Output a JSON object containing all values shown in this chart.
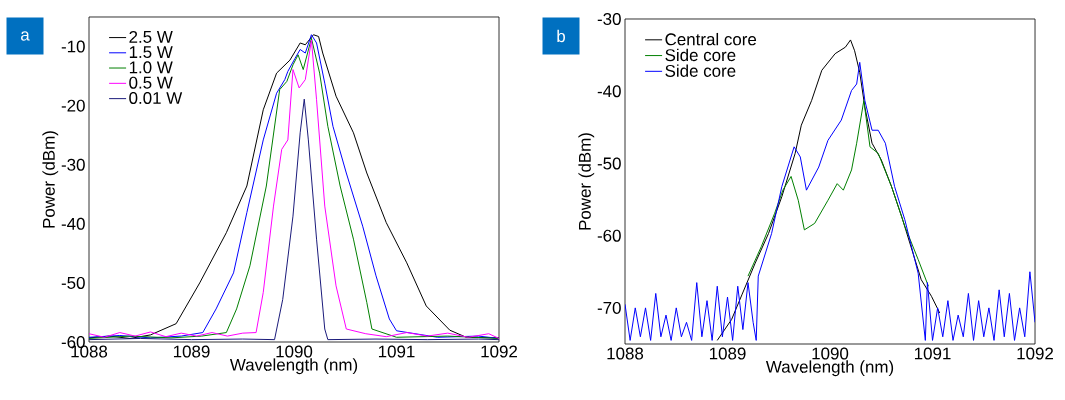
{
  "chart_data": [
    {
      "type": "line",
      "annotations": [
        "a"
      ],
      "xlabel": "Wavelength (nm)",
      "ylabel": "Power (dBm)",
      "xlim": [
        1088,
        1092
      ],
      "ylim": [
        -60,
        -5
      ],
      "xticks": [
        1088,
        1089,
        1090,
        1091,
        1092
      ],
      "yticks": [
        -60,
        -50,
        -40,
        -30,
        -20,
        -10
      ],
      "legend": "top left",
      "grid": false,
      "series": [
        {
          "name": "2.5 W",
          "color": "#000000",
          "x": [
            1088.0,
            1088.2,
            1088.4,
            1088.6,
            1088.85,
            1089.08,
            1089.34,
            1089.54,
            1089.7,
            1089.83,
            1089.96,
            1090.06,
            1090.11,
            1090.19,
            1090.24,
            1090.28,
            1090.41,
            1090.58,
            1090.71,
            1090.9,
            1091.1,
            1091.29,
            1091.52,
            1091.68,
            1091.8,
            1092.0
          ],
          "values": [
            -59.3,
            -59.0,
            -59.4,
            -58.8,
            -56.9,
            -50,
            -41.5,
            -33.6,
            -20.7,
            -14.5,
            -12.3,
            -9.4,
            -9.7,
            -8,
            -8.3,
            -11.1,
            -18.4,
            -24.6,
            -31.4,
            -39.8,
            -46.6,
            -53.9,
            -58,
            -59.2,
            null,
            -59.3
          ]
        },
        {
          "name": "1.5 W",
          "color": "#0000ff",
          "x": [
            1088.0,
            1088.3,
            1088.6,
            1088.9,
            1089.11,
            1089.24,
            1089.41,
            1089.54,
            1089.7,
            1089.83,
            1089.91,
            1089.94,
            1090.01,
            1090.06,
            1090.11,
            1090.17,
            1090.22,
            1090.3,
            1090.38,
            1090.51,
            1090.67,
            1090.8,
            1090.93,
            1091.0,
            1091.4,
            1091.8,
            1092.0
          ],
          "values": [
            -59.2,
            -58.9,
            -59.3,
            -59.0,
            -58.4,
            -54.4,
            -48.3,
            -38.1,
            -25.8,
            -17.9,
            -15.6,
            -14.2,
            -12,
            -10.5,
            -11.1,
            -8,
            -9.4,
            -16.2,
            -23.5,
            -31.4,
            -40.4,
            -48.8,
            -56.1,
            -58.1,
            -59.2,
            -59.0,
            -59.4
          ]
        },
        {
          "name": "1.0 W",
          "color": "#008000",
          "x": [
            1088.0,
            1088.4,
            1088.8,
            1089.1,
            1089.34,
            1089.44,
            1089.57,
            1089.73,
            1089.86,
            1089.93,
            1089.99,
            1090.04,
            1090.09,
            1090.17,
            1090.25,
            1090.33,
            1090.45,
            1090.58,
            1090.71,
            1090.76,
            1091.0,
            1091.5,
            1092.0
          ],
          "values": [
            -59.4,
            -59.0,
            -59.3,
            -59.0,
            -58.4,
            -54.4,
            -47.1,
            -33.6,
            -17.3,
            -15.9,
            -13.1,
            -11.4,
            -13.9,
            -8.6,
            -14.5,
            -23.5,
            -33.6,
            -42.6,
            -53.3,
            -57.8,
            -59.2,
            -59.0,
            -59.4
          ]
        },
        {
          "name": "0.5 W",
          "color": "#ff00ff",
          "x": [
            1088.0,
            1088.15,
            1088.3,
            1088.45,
            1088.6,
            1088.75,
            1088.9,
            1089.05,
            1089.2,
            1089.35,
            1089.5,
            1089.63,
            1089.7,
            1089.8,
            1089.88,
            1089.94,
            1089.99,
            1090.05,
            1090.11,
            1090.17,
            1090.22,
            1090.3,
            1090.41,
            1090.51,
            1090.7,
            1090.9,
            1091.1,
            1091.3,
            1091.5,
            1091.7,
            1091.9,
            1092.0
          ],
          "values": [
            -58.6,
            -59.2,
            -58.4,
            -59.0,
            -58.3,
            -59.1,
            -58.5,
            -59.0,
            -58.4,
            -59.0,
            -58.5,
            -58.4,
            -51.6,
            -37,
            -27.4,
            -25.8,
            -13.9,
            -17,
            -15.6,
            -8.9,
            -19,
            -37,
            -50.5,
            -57.8,
            -58.6,
            -59.1,
            -58.4,
            -59.0,
            -58.5,
            -59.2,
            -58.6,
            -59.4
          ]
        },
        {
          "name": "0.01 W",
          "color": "#1a1a7a",
          "x": [
            1088.0,
            1088.5,
            1089.0,
            1089.5,
            1089.81,
            1089.89,
            1089.99,
            1090.06,
            1090.1,
            1090.14,
            1090.22,
            1090.3,
            1090.33,
            1090.8,
            1091.3,
            1091.8,
            1092.0
          ],
          "values": [
            -59.6,
            -59.4,
            -59.6,
            -59.5,
            -59.6,
            -52.8,
            -38.7,
            -24.6,
            -18.9,
            -25.8,
            -42.6,
            -57.8,
            -59.6,
            -59.5,
            -59.6,
            -59.5,
            -59.6
          ]
        }
      ]
    },
    {
      "type": "line",
      "annotations": [
        "b"
      ],
      "xlabel": "Wavelength (nm)",
      "ylabel": "Power (dBm)",
      "xlim": [
        1088,
        1092
      ],
      "ylim": [
        -75,
        -30
      ],
      "xticks": [
        1088,
        1089,
        1090,
        1091,
        1092
      ],
      "yticks": [
        -70,
        -60,
        -50,
        -40,
        -30
      ],
      "legend": "top left",
      "grid": false,
      "series": [
        {
          "name": "Central core",
          "color": "#000000",
          "x": [
            1088.9,
            1089.04,
            1089.14,
            1089.27,
            1089.4,
            1089.53,
            1089.66,
            1089.72,
            1089.82,
            1089.92,
            1090.05,
            1090.15,
            1090.2,
            1090.24,
            1090.29,
            1090.34,
            1090.41,
            1090.5,
            1090.6,
            1090.7,
            1090.8,
            1090.89,
            1090.99,
            1091.07
          ],
          "values": [
            -74.5,
            -71.6,
            -68.2,
            -63.8,
            -59.7,
            -54.6,
            -48.6,
            -44.7,
            -41.3,
            -37.1,
            -34.8,
            -33.9,
            -32.9,
            -34.4,
            -37.4,
            -42.2,
            -47.2,
            -49.5,
            -53.2,
            -57.4,
            -62,
            -66.1,
            -68.4,
            -70.7
          ]
        },
        {
          "name": "Side core",
          "color": "#008000",
          "x": [
            1089.2,
            1089.33,
            1089.46,
            1089.54,
            1089.62,
            1089.69,
            1089.75,
            1089.85,
            1089.98,
            1090.07,
            1090.13,
            1090.21,
            1090.26,
            1090.33,
            1090.39,
            1090.47,
            1090.6,
            1090.73,
            1090.86,
            1090.96
          ],
          "values": [
            -65.6,
            -61.5,
            -56.9,
            -53.7,
            -51.8,
            -55.1,
            -59.2,
            -58.3,
            -55.1,
            -52.8,
            -53.7,
            -50.9,
            -47.2,
            -41.3,
            -47.7,
            -48.6,
            -53.2,
            -58.7,
            -63.3,
            -67
          ]
        },
        {
          "name": "Side core",
          "color": "#0000ff",
          "x": [
            1088.0,
            1088.05,
            1088.1,
            1088.15,
            1088.2,
            1088.25,
            1088.3,
            1088.35,
            1088.4,
            1088.45,
            1088.5,
            1088.55,
            1088.6,
            1088.65,
            1088.7,
            1088.75,
            1088.8,
            1088.85,
            1088.9,
            1088.95,
            1089.0,
            1089.05,
            1089.1,
            1089.15,
            1089.2,
            1089.25,
            1089.28,
            1089.3,
            1089.43,
            1089.53,
            1089.65,
            1089.71,
            1089.77,
            1089.89,
            1089.98,
            1090.11,
            1090.21,
            1090.26,
            1090.29,
            1090.34,
            1090.41,
            1090.47,
            1090.54,
            1090.63,
            1090.73,
            1090.86,
            1090.93,
            1090.95,
            1091.0,
            1091.05,
            1091.1,
            1091.15,
            1091.2,
            1091.25,
            1091.3,
            1091.35,
            1091.4,
            1091.45,
            1091.5,
            1091.55,
            1091.6,
            1091.65,
            1091.7,
            1091.75,
            1091.8,
            1091.85,
            1091.9,
            1091.95,
            1092.0
          ],
          "values": [
            -69.5,
            -74.5,
            -70,
            -74,
            -70,
            -74.5,
            -68,
            -74,
            -71,
            -74.5,
            -70,
            -74,
            -72,
            -74.5,
            -66.5,
            -74,
            -69,
            -74.5,
            -67,
            -74,
            -68.5,
            -74.5,
            -67,
            -73,
            -66.5,
            -72,
            -74.5,
            -65.6,
            -59.7,
            -53.2,
            -47.7,
            -49.1,
            -53.7,
            -50.5,
            -46.8,
            -44,
            -39.9,
            -39,
            -36,
            -41.3,
            -45.4,
            -45.4,
            -47.2,
            -53.2,
            -57.8,
            -65.2,
            -74.5,
            -66.5,
            -74.5,
            -70,
            -74,
            -69,
            -74.5,
            -71,
            -74,
            -68,
            -74.5,
            -69,
            -74,
            -70,
            -74.5,
            -67.5,
            -74,
            -68,
            -74.5,
            -70,
            -74,
            -65,
            -72
          ]
        }
      ]
    }
  ]
}
